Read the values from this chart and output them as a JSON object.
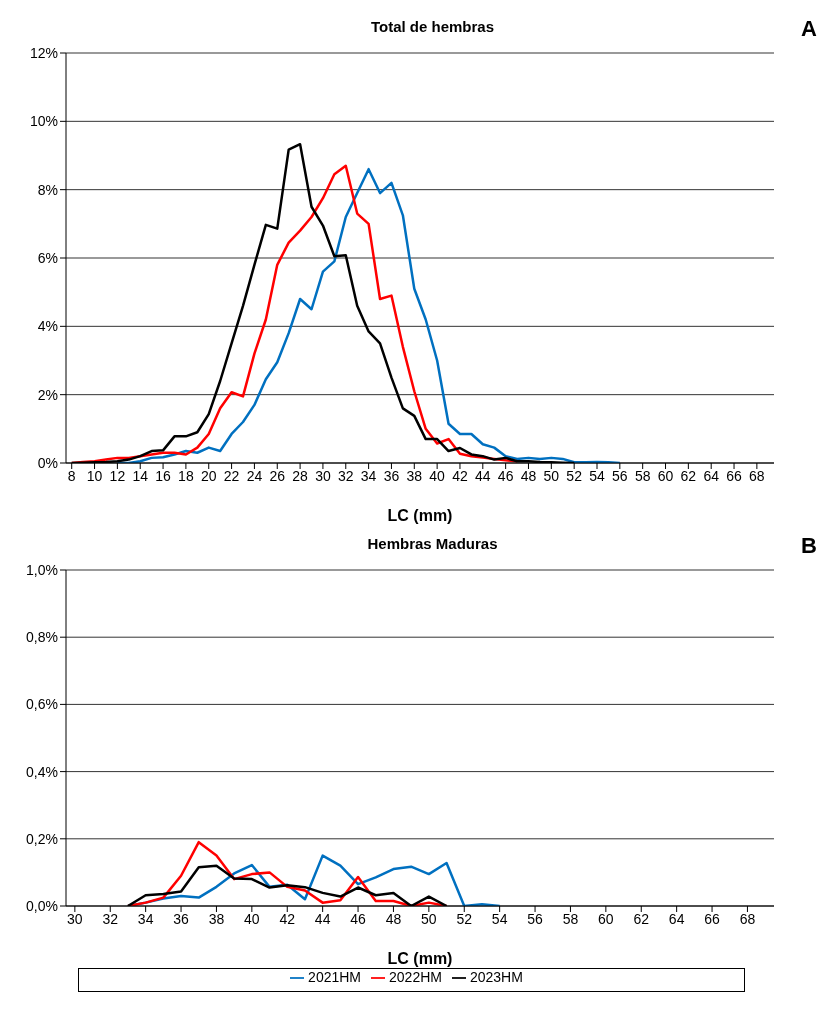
{
  "chart_data": [
    {
      "type": "line",
      "title": "Total de hembras",
      "xlabel": "LC (mm)",
      "annotations": [
        "A"
      ],
      "x": [
        8,
        9,
        10,
        11,
        12,
        13,
        14,
        15,
        16,
        17,
        18,
        19,
        20,
        21,
        22,
        23,
        24,
        25,
        26,
        27,
        28,
        29,
        30,
        31,
        32,
        33,
        34,
        35,
        36,
        37,
        38,
        39,
        40,
        41,
        42,
        43,
        44,
        45,
        46,
        47,
        48,
        49,
        50,
        51,
        52,
        53,
        54,
        55,
        56
      ],
      "series": [
        {
          "color": "#0070c0",
          "values": [
            null,
            null,
            null,
            null,
            0,
            0,
            0.05,
            0.15,
            0.17,
            0.25,
            0.35,
            0.3,
            0.45,
            0.35,
            0.85,
            1.2,
            1.7,
            2.45,
            2.95,
            3.8,
            4.8,
            4.5,
            5.6,
            5.9,
            7.2,
            7.9,
            8.6,
            7.9,
            8.2,
            7.25,
            5.1,
            4.2,
            3.0,
            1.15,
            0.85,
            0.85,
            0.55,
            0.45,
            0.2,
            0.12,
            0.15,
            0.12,
            0.15,
            0.12,
            0.02,
            0.02,
            0.03,
            0.02,
            0
          ]
        },
        {
          "color": "#ff0000",
          "values": [
            0,
            0.03,
            0.05,
            0.1,
            0.15,
            0.15,
            0.2,
            0.25,
            0.3,
            0.3,
            0.25,
            0.45,
            0.85,
            1.6,
            2.07,
            1.95,
            3.2,
            4.2,
            5.8,
            6.45,
            6.8,
            7.2,
            7.75,
            8.45,
            8.7,
            7.3,
            7.0,
            4.8,
            4.9,
            3.4,
            2.1,
            1.0,
            0.57,
            0.7,
            0.27,
            0.2,
            0.16,
            0.12,
            0.08,
            0.05,
            null,
            null,
            null,
            null,
            null,
            null,
            null,
            null,
            null
          ]
        },
        {
          "color": "#000000",
          "values": [
            0,
            0.01,
            0.02,
            0.03,
            0.05,
            0.1,
            0.2,
            0.35,
            0.37,
            0.78,
            0.78,
            0.9,
            1.43,
            2.4,
            3.5,
            4.6,
            5.8,
            6.97,
            6.86,
            9.17,
            9.33,
            7.5,
            6.95,
            6.05,
            6.08,
            4.6,
            3.85,
            3.5,
            2.5,
            1.6,
            1.38,
            0.7,
            0.7,
            0.35,
            0.44,
            0.25,
            0.2,
            0.1,
            0.15,
            0.05,
            0.05,
            0.03,
            0.02,
            0.01,
            0,
            null,
            null,
            null,
            null
          ]
        }
      ],
      "xlim": [
        7.5,
        69.5
      ],
      "xticks": [
        8,
        10,
        12,
        14,
        16,
        18,
        20,
        22,
        24,
        26,
        28,
        30,
        32,
        34,
        36,
        38,
        40,
        42,
        44,
        46,
        48,
        50,
        52,
        54,
        56,
        58,
        60,
        62,
        64,
        66,
        68
      ],
      "ylim": [
        0,
        12
      ],
      "yticks": [
        {
          "value": 0,
          "label": "0%"
        },
        {
          "value": 2,
          "label": "2%"
        },
        {
          "value": 4,
          "label": "4%"
        },
        {
          "value": 6,
          "label": "6%"
        },
        {
          "value": 8,
          "label": "8%"
        },
        {
          "value": 10,
          "label": "10%"
        },
        {
          "value": 12,
          "label": "12%"
        }
      ],
      "grid": "y",
      "marker": "none",
      "line_style": "solid"
    },
    {
      "type": "line",
      "title": "Hembras Maduras",
      "xlabel": "LC (mm)",
      "annotations": [
        "B"
      ],
      "x": [
        33,
        34,
        35,
        36,
        37,
        38,
        39,
        40,
        41,
        42,
        43,
        44,
        45,
        46,
        47,
        48,
        49,
        50,
        51,
        52,
        53,
        54
      ],
      "series": [
        {
          "name": "2021HM",
          "color": "#0070c0",
          "values": [
            0,
            0.01,
            0.022,
            0.03,
            0.025,
            0.057,
            0.097,
            0.122,
            0.057,
            0.063,
            0.02,
            0.15,
            0.12,
            0.065,
            0.085,
            0.11,
            0.117,
            0.095,
            0.128,
            0,
            0.005,
            0
          ]
        },
        {
          "name": "2022HM",
          "color": "#ff0000",
          "values": [
            0,
            0.01,
            0.025,
            0.09,
            0.19,
            0.15,
            0.08,
            0.095,
            0.1,
            0.057,
            0.046,
            0.01,
            0.017,
            0.086,
            0.015,
            0.015,
            0,
            0.01,
            0,
            null,
            null,
            null
          ]
        },
        {
          "name": "2023HM",
          "color": "#000000",
          "values": [
            0,
            0.032,
            0.036,
            0.043,
            0.115,
            0.12,
            0.082,
            0.08,
            0.055,
            0.062,
            0.056,
            0.039,
            0.028,
            0.055,
            0.032,
            0.039,
            0,
            0.028,
            0,
            null,
            null,
            null
          ]
        }
      ],
      "xlim": [
        29.5,
        69.5
      ],
      "xticks": [
        30,
        32,
        34,
        36,
        38,
        40,
        42,
        44,
        46,
        48,
        50,
        52,
        54,
        56,
        58,
        60,
        62,
        64,
        66,
        68
      ],
      "ylim": [
        0,
        1
      ],
      "yticks": [
        {
          "value": 0,
          "label": "0,0%"
        },
        {
          "value": 0.2,
          "label": "0,2%"
        },
        {
          "value": 0.4,
          "label": "0,4%"
        },
        {
          "value": 0.6,
          "label": "0,6%"
        },
        {
          "value": 0.8,
          "label": "0,8%"
        },
        {
          "value": 1,
          "label": "1,0%"
        }
      ],
      "grid": "y",
      "legend": "bottom",
      "marker": "none",
      "line_style": "solid"
    }
  ]
}
